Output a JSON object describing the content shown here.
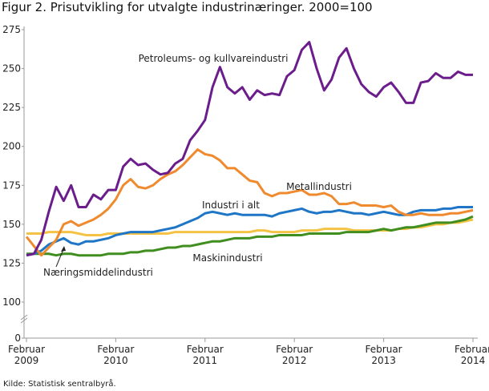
{
  "chart_data": {
    "type": "line",
    "title": "Figur 2. Prisutvikling for utvalgte industrinæringer. 2000=100",
    "source": "Kilde: Statistisk sentralbyrå.",
    "categories": [
      "Februar 2009",
      null,
      null,
      null,
      null,
      null,
      null,
      null,
      null,
      null,
      null,
      null,
      "Februar 2010",
      null,
      null,
      null,
      null,
      null,
      null,
      null,
      null,
      null,
      null,
      null,
      "Februar 2011",
      null,
      null,
      null,
      null,
      null,
      null,
      null,
      null,
      null,
      null,
      null,
      "Februar 2012",
      null,
      null,
      null,
      null,
      null,
      null,
      null,
      null,
      null,
      null,
      null,
      "Februar 2013",
      null,
      null,
      null,
      null,
      null,
      null,
      null,
      null,
      null,
      null,
      null,
      "Februar 2014"
    ],
    "ylim": [
      0,
      275
    ],
    "axis_break": [
      0,
      100
    ],
    "yticks": [
      0,
      100,
      125,
      150,
      175,
      200,
      225,
      250,
      275
    ],
    "series": [
      {
        "name": "Petroleums- og kullvareindustri",
        "color": "#6b1d8c",
        "values": [
          130,
          131,
          140,
          158,
          174,
          165,
          175,
          161,
          161,
          169,
          166,
          172,
          172,
          187,
          192,
          188,
          189,
          185,
          182,
          183,
          189,
          192,
          204,
          210,
          217,
          238,
          251,
          238,
          234,
          238,
          230,
          236,
          233,
          234,
          233,
          245,
          249,
          262,
          267,
          250,
          236,
          243,
          257,
          263,
          250,
          240,
          235,
          232,
          238,
          241,
          235,
          228,
          228,
          241,
          242,
          247,
          244,
          244,
          248,
          246,
          246
        ]
      },
      {
        "name": "Metallindustri",
        "color": "#ef8a2e",
        "values": [
          142,
          136,
          130,
          135,
          140,
          150,
          152,
          149,
          151,
          153,
          156,
          160,
          166,
          175,
          179,
          174,
          173,
          175,
          179,
          182,
          184,
          188,
          193,
          198,
          195,
          194,
          191,
          186,
          186,
          182,
          178,
          177,
          170,
          168,
          170,
          170,
          171,
          172,
          169,
          169,
          170,
          168,
          163,
          163,
          164,
          162,
          162,
          162,
          161,
          162,
          158,
          156,
          156,
          157,
          156,
          156,
          156,
          157,
          157,
          158,
          159
        ]
      },
      {
        "name": "Industri i alt",
        "color": "#1f76c6",
        "values": [
          130,
          131,
          133,
          137,
          139,
          141,
          138,
          137,
          139,
          139,
          140,
          141,
          143,
          144,
          145,
          145,
          145,
          145,
          146,
          147,
          148,
          150,
          152,
          154,
          157,
          158,
          157,
          156,
          157,
          156,
          156,
          156,
          156,
          155,
          157,
          158,
          159,
          160,
          158,
          157,
          158,
          158,
          159,
          158,
          157,
          157,
          156,
          157,
          158,
          157,
          156,
          156,
          158,
          159,
          159,
          159,
          160,
          160,
          161,
          161,
          161
        ]
      },
      {
        "name": "Maskinindustri",
        "color": "#f4c245",
        "values": [
          144,
          144,
          144,
          145,
          145,
          145,
          145,
          144,
          143,
          143,
          143,
          144,
          144,
          144,
          144,
          144,
          144,
          144,
          144,
          144,
          145,
          145,
          145,
          145,
          145,
          145,
          145,
          145,
          145,
          145,
          145,
          146,
          146,
          145,
          145,
          145,
          145,
          146,
          146,
          146,
          147,
          147,
          147,
          147,
          146,
          146,
          146,
          146,
          146,
          146,
          147,
          147,
          148,
          148,
          149,
          150,
          150,
          151,
          151,
          152,
          153
        ]
      },
      {
        "name": "Næringsmiddelindustri",
        "color": "#3f8e1f",
        "values": [
          131,
          131,
          131,
          131,
          130,
          131,
          131,
          130,
          130,
          130,
          130,
          131,
          131,
          131,
          132,
          132,
          133,
          133,
          134,
          135,
          135,
          136,
          136,
          137,
          138,
          139,
          139,
          140,
          141,
          141,
          141,
          142,
          142,
          142,
          143,
          143,
          143,
          143,
          144,
          144,
          144,
          144,
          144,
          145,
          145,
          145,
          145,
          146,
          147,
          146,
          147,
          148,
          148,
          149,
          150,
          151,
          151,
          151,
          152,
          153,
          155
        ]
      }
    ]
  }
}
